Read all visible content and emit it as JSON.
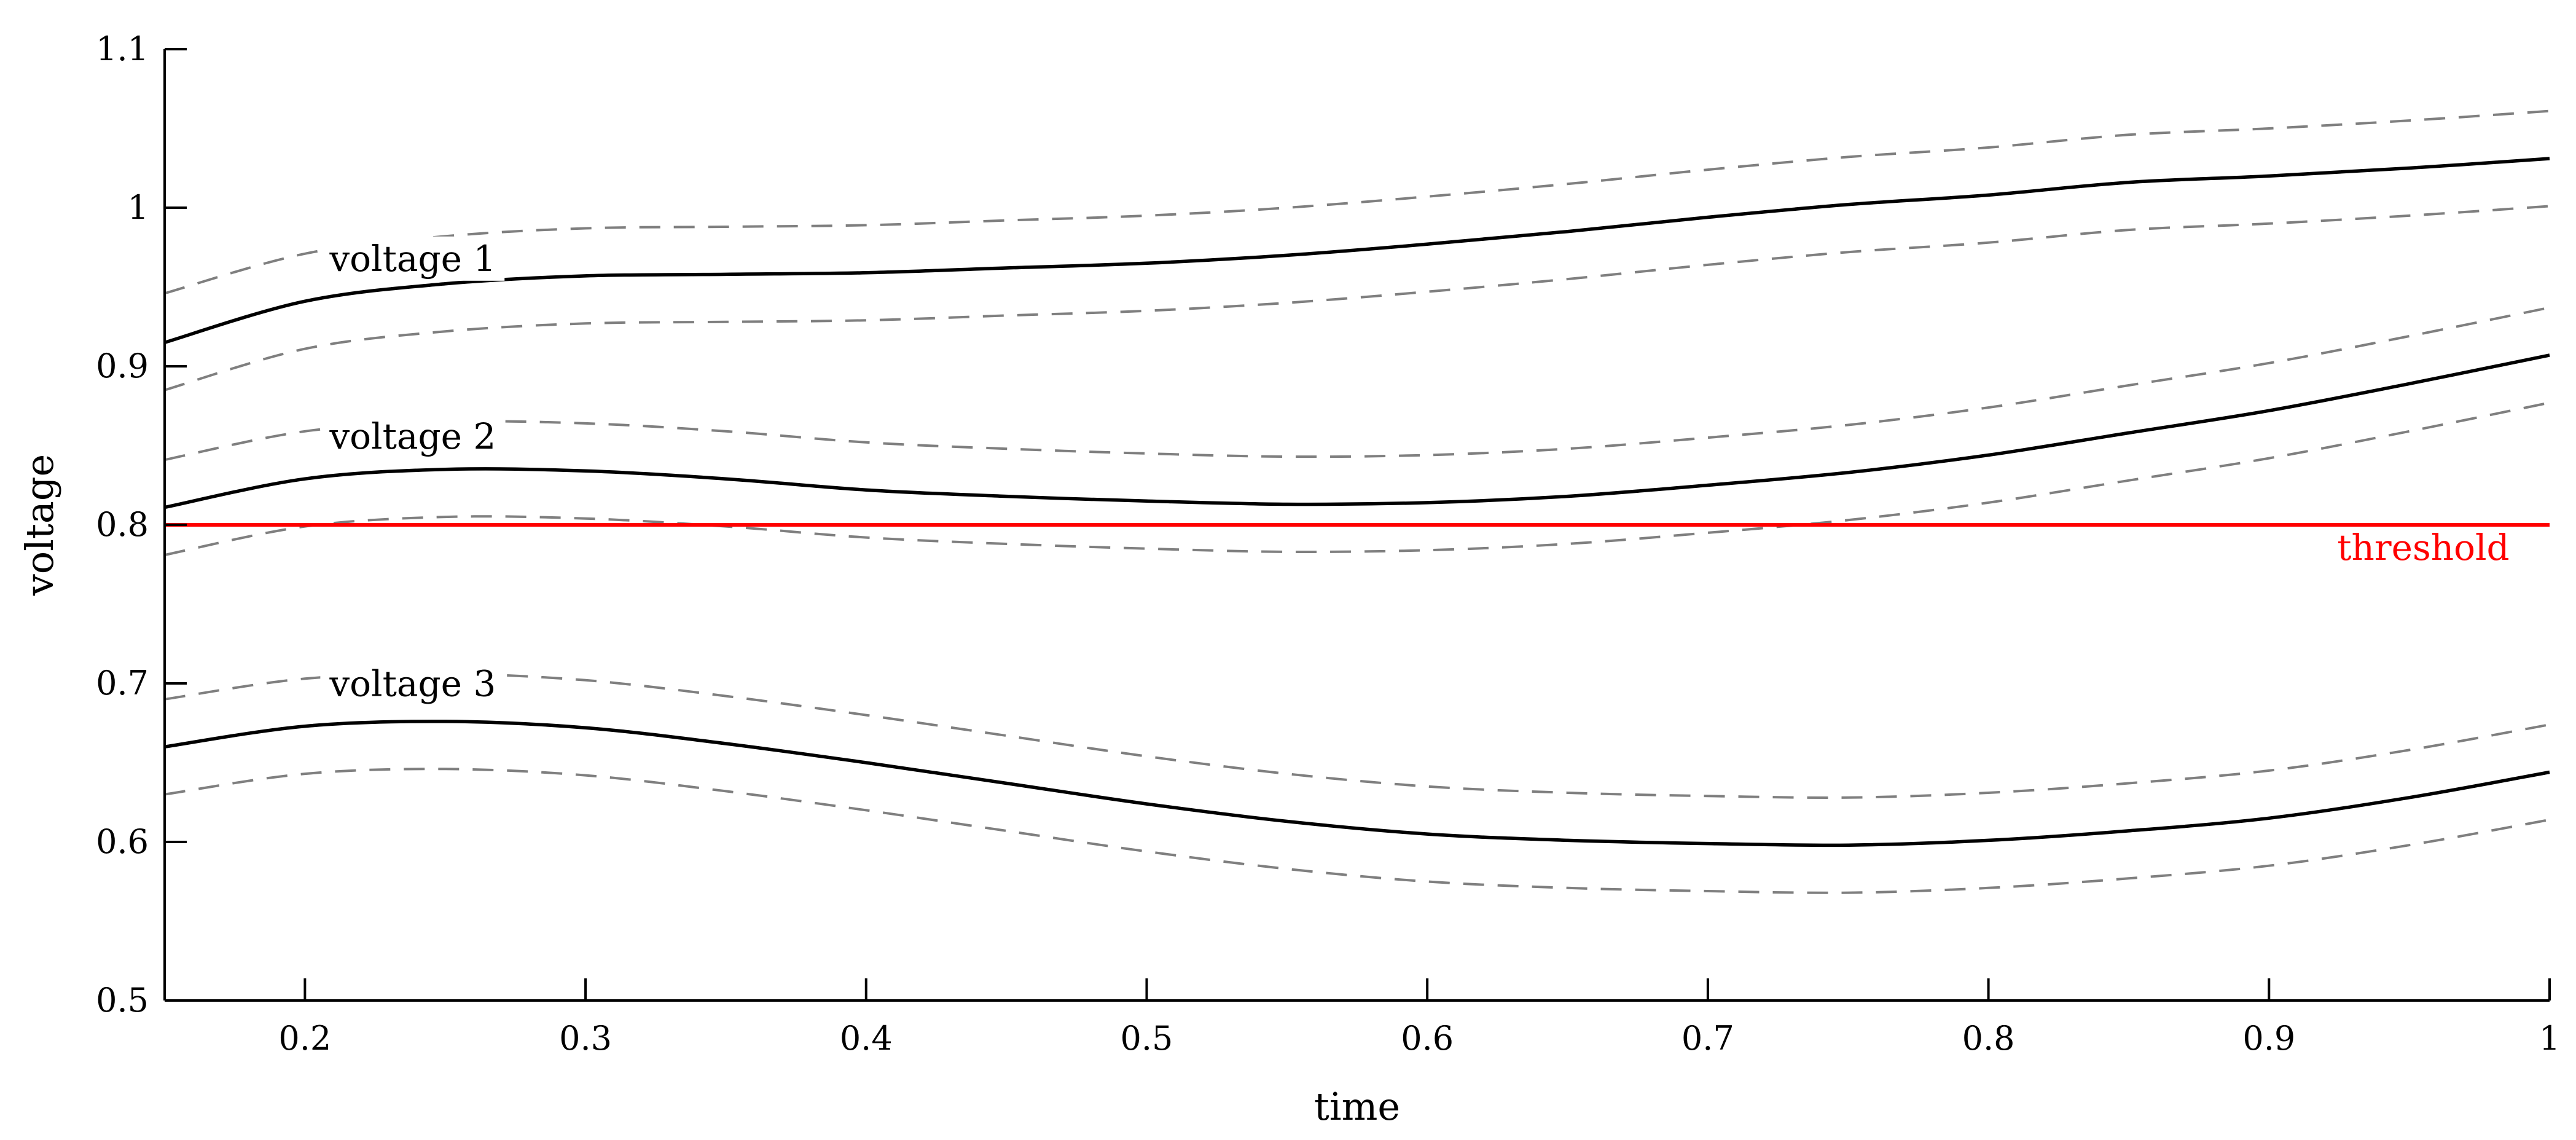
{
  "chart_data": {
    "type": "line",
    "title": "",
    "xlabel": "time",
    "ylabel": "voltage",
    "xlim": [
      0.15,
      1.0
    ],
    "ylim": [
      0.5,
      1.1
    ],
    "xticks": [
      "0.2",
      "0.3",
      "0.4",
      "0.5",
      "0.6",
      "0.7",
      "0.8",
      "0.9",
      "1"
    ],
    "yticks": [
      "0.5",
      "0.6",
      "0.7",
      "0.8",
      "0.9",
      "1",
      "1.1"
    ],
    "grid": false,
    "legend": "none (series labelled inline at upper-left of each band)",
    "colors": {
      "series_line": "#000000",
      "confidence_band": "#7f7f7f",
      "threshold": "#ff0000",
      "axes": "#000000"
    },
    "x": [
      0.15,
      0.2,
      0.25,
      0.3,
      0.35,
      0.4,
      0.45,
      0.5,
      0.55,
      0.6,
      0.65,
      0.7,
      0.75,
      0.8,
      0.85,
      0.9,
      0.95,
      1.0
    ],
    "series": [
      {
        "name": "voltage 1",
        "values": [
          0.915,
          0.941,
          0.952,
          0.957,
          0.958,
          0.959,
          0.962,
          0.965,
          0.97,
          0.977,
          0.985,
          0.994,
          1.002,
          1.008,
          1.016,
          1.02,
          1.025,
          1.031
        ],
        "upper": [
          0.946,
          0.971,
          0.982,
          0.987,
          0.988,
          0.989,
          0.992,
          0.995,
          1.0,
          1.007,
          1.015,
          1.024,
          1.032,
          1.038,
          1.046,
          1.05,
          1.055,
          1.061
        ],
        "lower": [
          0.885,
          0.911,
          0.922,
          0.927,
          0.928,
          0.929,
          0.932,
          0.935,
          0.94,
          0.947,
          0.955,
          0.964,
          0.972,
          0.978,
          0.986,
          0.99,
          0.995,
          1.001
        ]
      },
      {
        "name": "voltage 2",
        "values": [
          0.811,
          0.829,
          0.835,
          0.834,
          0.829,
          0.822,
          0.818,
          0.815,
          0.813,
          0.814,
          0.818,
          0.825,
          0.833,
          0.844,
          0.858,
          0.872,
          0.889,
          0.907
        ],
        "upper": [
          0.841,
          0.859,
          0.865,
          0.864,
          0.859,
          0.852,
          0.848,
          0.845,
          0.843,
          0.844,
          0.848,
          0.855,
          0.863,
          0.874,
          0.888,
          0.902,
          0.919,
          0.937
        ],
        "lower": [
          0.781,
          0.799,
          0.805,
          0.804,
          0.799,
          0.792,
          0.788,
          0.785,
          0.783,
          0.784,
          0.788,
          0.795,
          0.803,
          0.814,
          0.828,
          0.842,
          0.859,
          0.877
        ]
      },
      {
        "name": "voltage 3",
        "values": [
          0.66,
          0.673,
          0.676,
          0.672,
          0.662,
          0.65,
          0.637,
          0.624,
          0.613,
          0.605,
          0.601,
          0.599,
          0.598,
          0.601,
          0.607,
          0.615,
          0.628,
          0.644
        ],
        "upper": [
          0.69,
          0.703,
          0.706,
          0.702,
          0.692,
          0.68,
          0.667,
          0.654,
          0.643,
          0.635,
          0.631,
          0.629,
          0.628,
          0.631,
          0.637,
          0.645,
          0.658,
          0.674
        ],
        "lower": [
          0.63,
          0.643,
          0.646,
          0.642,
          0.632,
          0.62,
          0.607,
          0.594,
          0.583,
          0.575,
          0.571,
          0.569,
          0.568,
          0.571,
          0.577,
          0.585,
          0.598,
          0.614
        ]
      }
    ],
    "threshold": {
      "label": "threshold",
      "value": 0.8
    }
  }
}
